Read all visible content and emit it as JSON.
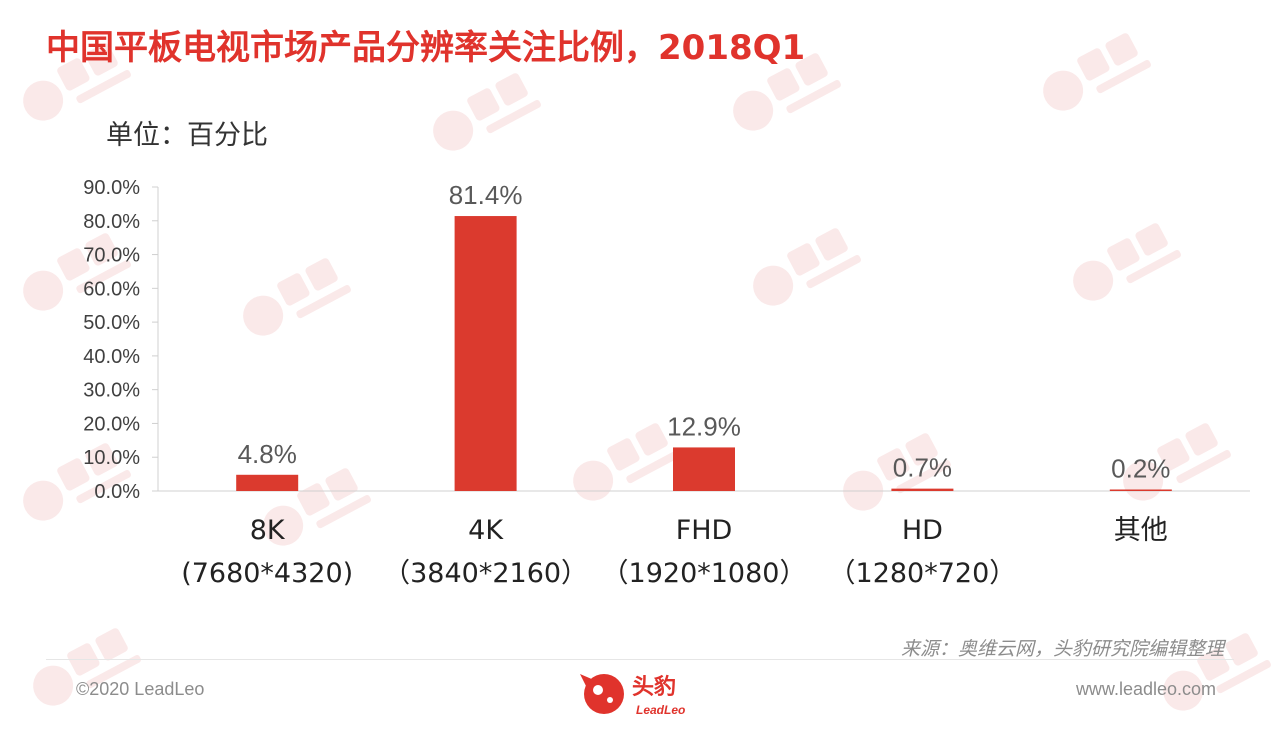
{
  "header": {
    "title": "中国平板电视市场产品分辨率关注比例，2018Q1",
    "unit": "单位：百分比"
  },
  "chart_data": {
    "type": "bar",
    "categories": [
      [
        "8K",
        "(7680*4320)"
      ],
      [
        "4K",
        "（3840*2160）"
      ],
      [
        "FHD",
        "（1920*1080）"
      ],
      [
        "HD",
        "（1280*720）"
      ],
      [
        "其他"
      ]
    ],
    "values": [
      4.8,
      81.4,
      12.9,
      0.7,
      0.2
    ],
    "value_labels": [
      "4.8%",
      "81.4%",
      "12.9%",
      "0.7%",
      "0.2%"
    ],
    "ylim": [
      0,
      90
    ],
    "yticks": [
      "0.0%",
      "10.0%",
      "20.0%",
      "30.0%",
      "40.0%",
      "50.0%",
      "60.0%",
      "70.0%",
      "80.0%",
      "90.0%"
    ],
    "bar_color": "#db3a2e",
    "grid": false,
    "legend": "none"
  },
  "footer": {
    "source": "来源：奥维云网，头豹研究院编辑整理",
    "copyright": "©2020 LeadLeo",
    "website": "www.leadleo.com",
    "logo_text": "头豹",
    "logo_subtext": "LeadLeo"
  },
  "colors": {
    "accent": "#e0332c",
    "bar": "#db3a2e",
    "text": "#333333",
    "muted": "#8c8c8c"
  }
}
